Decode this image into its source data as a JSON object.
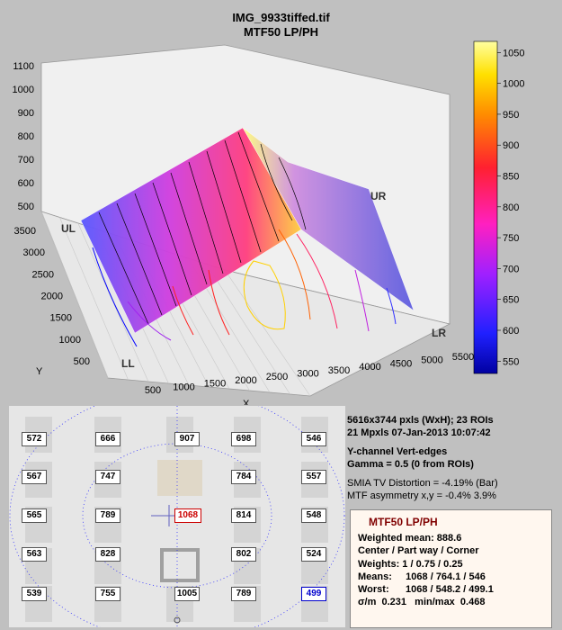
{
  "title": "IMG_9933tiffed.tif",
  "subtitle": "MTF50 LP/PH",
  "chart_data": {
    "type": "surface",
    "z_ticks": [
      500,
      600,
      700,
      800,
      900,
      1000,
      1100
    ],
    "x_ticks": [
      500,
      1000,
      1500,
      2000,
      2500,
      3000,
      3500,
      4000,
      4500,
      5000,
      5500
    ],
    "y_ticks": [
      500,
      1000,
      1500,
      2000,
      2500,
      3000,
      3500
    ],
    "xlabel": "X",
    "ylabel": "Y",
    "colorbar_ticks": [
      550,
      600,
      650,
      700,
      750,
      800,
      850,
      900,
      950,
      1000,
      1050
    ],
    "colorbar_range": [
      530,
      1068
    ],
    "corner_labels": [
      "UL",
      "UR",
      "LL",
      "LR"
    ],
    "colors": {
      "low": "#0000ff",
      "mid": "#ff0050",
      "high": "#ffff80"
    }
  },
  "roi_values": [
    {
      "v": "572",
      "r": 0,
      "c": 0
    },
    {
      "v": "666",
      "r": 0,
      "c": 1
    },
    {
      "v": "907",
      "r": 0,
      "c": 2
    },
    {
      "v": "698",
      "r": 0,
      "c": 3
    },
    {
      "v": "546",
      "r": 0,
      "c": 4
    },
    {
      "v": "567",
      "r": 1,
      "c": 0
    },
    {
      "v": "747",
      "r": 1,
      "c": 1
    },
    {
      "v": "784",
      "r": 1,
      "c": 3
    },
    {
      "v": "557",
      "r": 1,
      "c": 4
    },
    {
      "v": "565",
      "r": 2,
      "c": 0
    },
    {
      "v": "789",
      "r": 2,
      "c": 1
    },
    {
      "v": "1068",
      "r": 2,
      "c": 2,
      "kind": "center"
    },
    {
      "v": "814",
      "r": 2,
      "c": 3
    },
    {
      "v": "548",
      "r": 2,
      "c": 4
    },
    {
      "v": "563",
      "r": 3,
      "c": 0
    },
    {
      "v": "828",
      "r": 3,
      "c": 1
    },
    {
      "v": "802",
      "r": 3,
      "c": 3
    },
    {
      "v": "524",
      "r": 3,
      "c": 4
    },
    {
      "v": "539",
      "r": 4,
      "c": 0
    },
    {
      "v": "755",
      "r": 4,
      "c": 1
    },
    {
      "v": "1005",
      "r": 4,
      "c": 2
    },
    {
      "v": "789",
      "r": 4,
      "c": 3
    },
    {
      "v": "499",
      "r": 4,
      "c": 4,
      "kind": "min"
    }
  ],
  "info": {
    "line1": "5616x3744 pxls (WxH);   23 ROIs",
    "line2": "21 Mpxls   07-Jan-2013 10:07:42",
    "line3": "Y-channel   Vert-edges",
    "line4": "Gamma = 0.5  (0 from ROIs)",
    "line5": "SMIA TV Distortion = -4.19%  (Bar)",
    "line6": "MTF asymmetry x,y = -0.4%  3.9%"
  },
  "summary": {
    "header": "MTF50 LP/PH",
    "weighted_mean": "Weighted mean: 888.6",
    "regions": "Center / Part way / Corner",
    "weights": "Weights: 1 / 0.75 / 0.25",
    "means": "Means:     1068 / 764.1 / 546",
    "worst": "Worst:      1068 / 548.2 / 499.1",
    "stats": "σ/m  0.231   min/max  0.468"
  }
}
